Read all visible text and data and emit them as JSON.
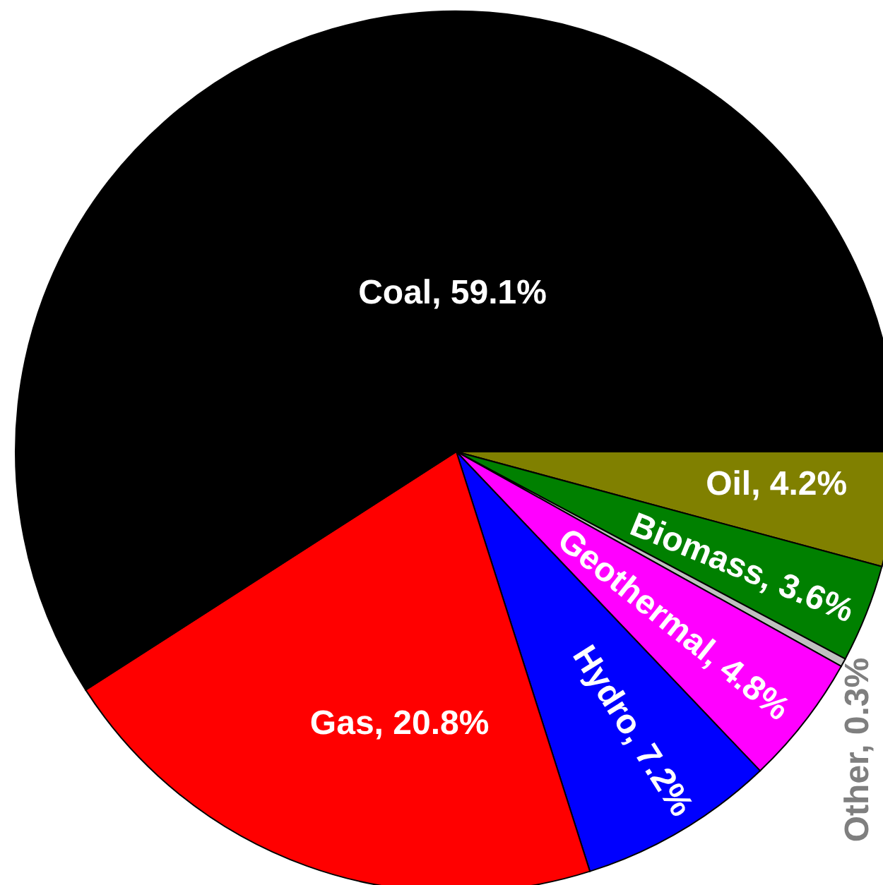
{
  "chart_data": {
    "type": "pie",
    "categories": [
      "Oil",
      "Biomass",
      "Other",
      "Geothermal",
      "Hydro",
      "Gas",
      "Coal"
    ],
    "values": [
      4.2,
      3.6,
      0.3,
      4.8,
      7.2,
      20.8,
      59.1
    ],
    "colors": [
      "#808000",
      "#008000",
      "#c0c0c0",
      "#ff00ff",
      "#0000ff",
      "#ff0000",
      "#000000"
    ],
    "value_labels": [
      "4.2%",
      "3.6%",
      "0.3%",
      "4.8%",
      "7.2%",
      "20.8%",
      "59.1%"
    ]
  }
}
